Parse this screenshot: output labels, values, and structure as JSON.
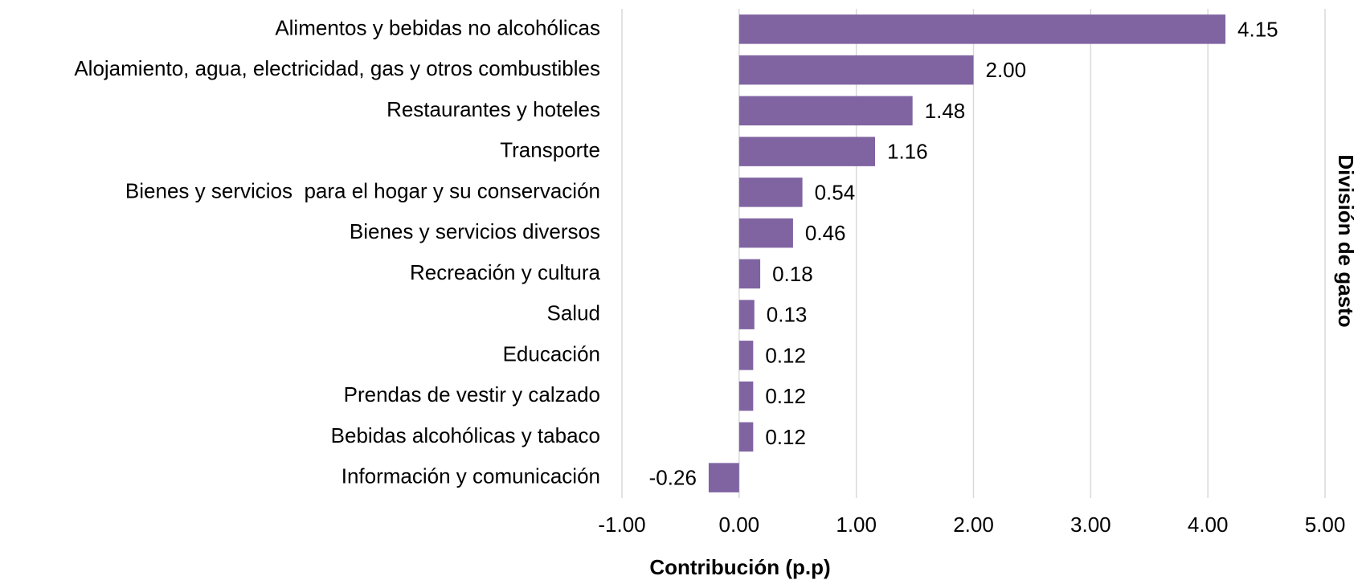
{
  "chart_data": {
    "type": "bar",
    "orientation": "horizontal",
    "x_axis_label": "Contribución (p.p)",
    "y_axis_label": "División de gasto",
    "categories": [
      "Alimentos y bebidas no alcohólicas",
      "Alojamiento, agua, electricidad, gas y otros combustibles",
      "Restaurantes y hoteles",
      "Transporte",
      "Bienes y servicios  para el hogar y su conservación",
      "Bienes y servicios diversos",
      "Recreación y cultura",
      "Salud",
      "Educación",
      "Prendas de vestir y calzado",
      "Bebidas alcohólicas y tabaco",
      "Información y comunicación"
    ],
    "values": [
      4.15,
      2.0,
      1.48,
      1.16,
      0.54,
      0.46,
      0.18,
      0.13,
      0.12,
      0.12,
      0.12,
      -0.26
    ],
    "value_labels": [
      "4.15",
      "2.00",
      "1.48",
      "1.16",
      "0.54",
      "0.46",
      "0.18",
      "0.13",
      "0.12",
      "0.12",
      "0.12",
      "-0.26"
    ],
    "color": "#8064a2",
    "xlim": [
      -1,
      5
    ],
    "xticks": [
      {
        "value": -1,
        "label": "-1.00"
      },
      {
        "value": 0,
        "label": "0.00"
      },
      {
        "value": 1,
        "label": "1.00"
      },
      {
        "value": 2,
        "label": "2.00"
      },
      {
        "value": 3,
        "label": "3.00"
      },
      {
        "value": 4,
        "label": "4.00"
      },
      {
        "value": 5,
        "label": "5.00"
      }
    ],
    "grid": true
  }
}
